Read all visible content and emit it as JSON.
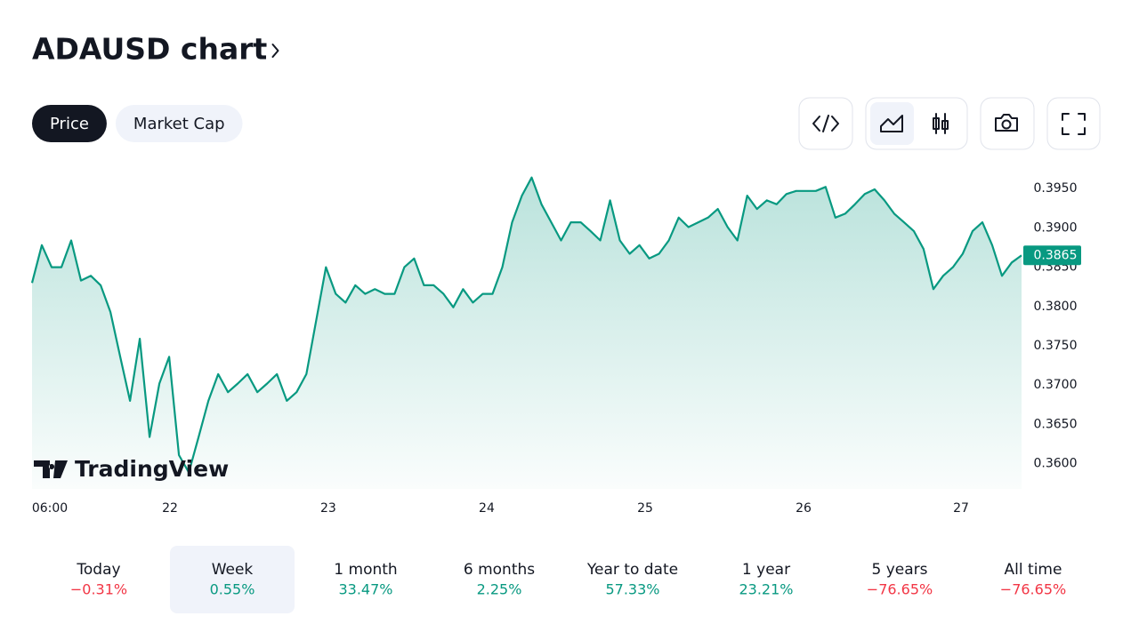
{
  "header": {
    "title": "ADAUSD chart"
  },
  "tabs": [
    {
      "label": "Price",
      "selected": true
    },
    {
      "label": "Market Cap",
      "selected": false
    }
  ],
  "chart_data": {
    "type": "line",
    "series": [
      {
        "name": "ADAUSD",
        "color": "#089981",
        "values": [
          0.383,
          0.3878,
          0.385,
          0.385,
          0.3884,
          0.3833,
          0.3839,
          0.3827,
          0.3793,
          0.3736,
          0.368,
          0.3759,
          0.3634,
          0.3702,
          0.3736,
          0.3611,
          0.3589,
          0.3634,
          0.368,
          0.3714,
          0.3691,
          0.3702,
          0.3714,
          0.3691,
          0.3702,
          0.3714,
          0.368,
          0.3691,
          0.3714,
          0.3782,
          0.385,
          0.3816,
          0.3805,
          0.3827,
          0.3816,
          0.3822,
          0.3816,
          0.3816,
          0.385,
          0.3861,
          0.3827,
          0.3827,
          0.3816,
          0.3799,
          0.3822,
          0.3805,
          0.3816,
          0.3816,
          0.385,
          0.3907,
          0.3941,
          0.3964,
          0.393,
          0.3907,
          0.3884,
          0.3907,
          0.3907,
          0.3896,
          0.3884,
          0.3935,
          0.3884,
          0.3867,
          0.3878,
          0.3861,
          0.3867,
          0.3884,
          0.3913,
          0.3901,
          0.3907,
          0.3913,
          0.3924,
          0.3901,
          0.3884,
          0.3941,
          0.3924,
          0.3935,
          0.393,
          0.3943,
          0.3947,
          0.3947,
          0.3947,
          0.3952,
          0.3913,
          0.3918,
          0.393,
          0.3943,
          0.3949,
          0.3935,
          0.3918,
          0.3907,
          0.3896,
          0.3873,
          0.3822,
          0.3839,
          0.385,
          0.3867,
          0.3896,
          0.3907,
          0.3878,
          0.3839,
          0.3856,
          0.3865
        ]
      }
    ],
    "last_price_label": "0.3865",
    "xlim": [
      0,
      101
    ],
    "xticks": [
      {
        "value": 1.82,
        "label": "06:00"
      },
      {
        "value": 14.08,
        "label": "22"
      },
      {
        "value": 30.24,
        "label": "23"
      },
      {
        "value": 46.41,
        "label": "24"
      },
      {
        "value": 62.58,
        "label": "25"
      },
      {
        "value": 78.75,
        "label": "26"
      },
      {
        "value": 94.83,
        "label": "27"
      }
    ],
    "ylim": [
      0.3568,
      0.3975
    ],
    "yticks": [
      {
        "value": 0.36,
        "label": "0.3600"
      },
      {
        "value": 0.365,
        "label": "0.3650"
      },
      {
        "value": 0.37,
        "label": "0.3700"
      },
      {
        "value": 0.375,
        "label": "0.3750"
      },
      {
        "value": 0.38,
        "label": "0.3800"
      },
      {
        "value": 0.385,
        "label": "0.3850"
      },
      {
        "value": 0.39,
        "label": "0.3900"
      },
      {
        "value": 0.395,
        "label": "0.3950"
      }
    ],
    "watermark": "TradingView"
  },
  "periods": [
    {
      "label": "Today",
      "change": "−0.31%",
      "color": "#f23645",
      "selected": false
    },
    {
      "label": "Week",
      "change": "0.55%",
      "color": "#089981",
      "selected": true
    },
    {
      "label": "1 month",
      "change": "33.47%",
      "color": "#089981",
      "selected": false
    },
    {
      "label": "6 months",
      "change": "2.25%",
      "color": "#089981",
      "selected": false
    },
    {
      "label": "Year to date",
      "change": "57.33%",
      "color": "#089981",
      "selected": false
    },
    {
      "label": "1 year",
      "change": "23.21%",
      "color": "#089981",
      "selected": false
    },
    {
      "label": "5 years",
      "change": "−76.65%",
      "color": "#f23645",
      "selected": false
    },
    {
      "label": "All time",
      "change": "−76.65%",
      "color": "#f23645",
      "selected": false
    }
  ]
}
